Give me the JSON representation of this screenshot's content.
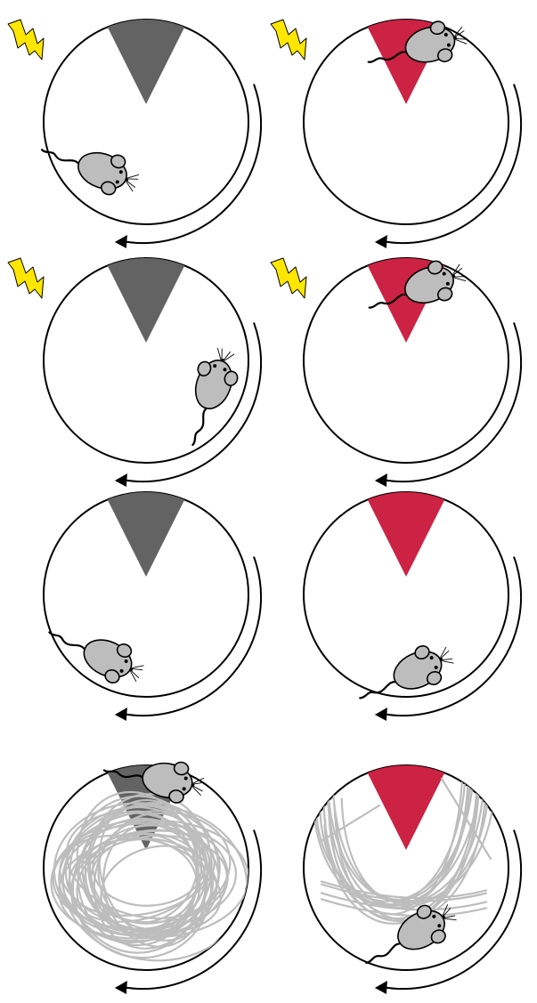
{
  "colors": {
    "background": "#ffffff",
    "outline": "#000000",
    "zone_inactive": "#636363",
    "zone_active": "#cc2244",
    "shock_bolt": "#ffe600",
    "mouse": "#bdbdbd",
    "track": "#bdbdbd"
  },
  "icons": {
    "shock": "lightning-bolt-icon",
    "animal": "mouse-icon",
    "rotation": "counterclockwise-arrow-icon"
  },
  "panels": [
    {
      "row": 1,
      "column": "left",
      "zone": "inactive",
      "shock": true,
      "track": false
    },
    {
      "row": 1,
      "column": "right",
      "zone": "active",
      "shock": true,
      "track": false
    },
    {
      "row": 2,
      "column": "left",
      "zone": "inactive",
      "shock": true,
      "track": false
    },
    {
      "row": 2,
      "column": "right",
      "zone": "active",
      "shock": true,
      "track": false
    },
    {
      "row": 3,
      "column": "left",
      "zone": "inactive",
      "shock": false,
      "track": false
    },
    {
      "row": 3,
      "column": "right",
      "zone": "active",
      "shock": false,
      "track": false
    },
    {
      "row": 4,
      "column": "left",
      "zone": "inactive",
      "shock": false,
      "track": true
    },
    {
      "row": 4,
      "column": "right",
      "zone": "active",
      "shock": false,
      "track": true
    }
  ]
}
